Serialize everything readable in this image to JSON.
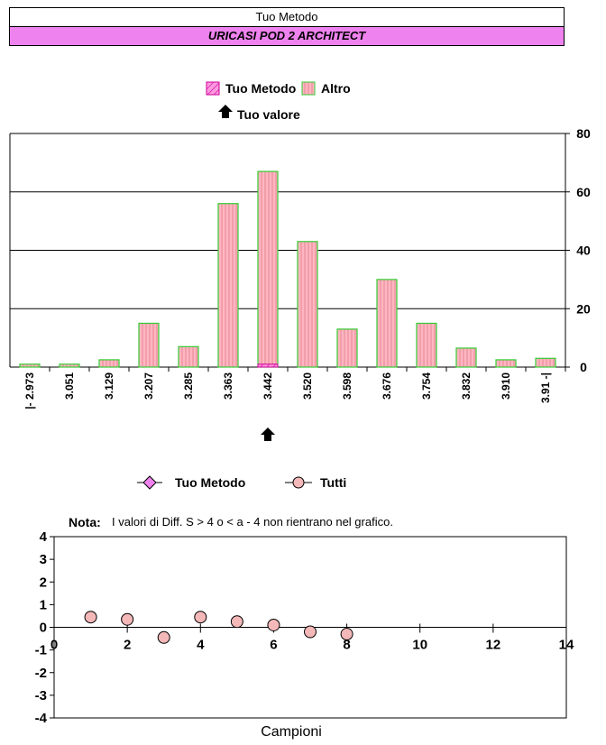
{
  "header": {
    "title": "Tuo Metodo",
    "subtitle": "URICASI POD 2  ARCHITECT"
  },
  "colors": {
    "header_bg": "#ee82ee",
    "bar_fill": "#ffb6c1",
    "bar_stroke": "#33cc33",
    "method_fill": "#ff66cc",
    "point_fill": "#f4b8b8"
  },
  "chart_data": [
    {
      "type": "bar",
      "legend": [
        "Tuo Metodo",
        "Altro"
      ],
      "marker_label": "Tuo valore",
      "categories": [
        "|- 2.973",
        "3.051",
        "3.129",
        "3.207",
        "3.285",
        "3.363",
        "3.442",
        "3.520",
        "3.598",
        "3.676",
        "3.754",
        "3.832",
        "3.910",
        "3.91 -|"
      ],
      "series": [
        {
          "name": "Altro",
          "values": [
            1,
            1,
            2.5,
            15,
            7,
            56,
            67,
            43,
            13,
            30,
            15,
            6.5,
            2.5,
            3
          ]
        },
        {
          "name": "Tuo Metodo",
          "values": [
            0,
            0,
            0,
            0,
            0,
            0,
            1,
            0,
            0,
            0,
            0,
            0,
            0,
            0
          ]
        }
      ],
      "marker_category_index": 6,
      "ylim": [
        0,
        80
      ],
      "yticks": [
        0,
        20,
        40,
        60,
        80
      ],
      "y_axis_side": "right",
      "grid": true
    },
    {
      "type": "scatter",
      "legend": [
        "Tuo Metodo",
        "Tutti"
      ],
      "note_label": "Nota:",
      "note_text": "I valori di Diff. S > 4 o < a - 4 non rientrano nel grafico.",
      "xlabel": "Campioni",
      "series": [
        {
          "name": "Tutti",
          "x": [
            1,
            2,
            3,
            4,
            5,
            6,
            7,
            8
          ],
          "y": [
            0.45,
            0.35,
            -0.45,
            0.45,
            0.25,
            0.1,
            -0.2,
            -0.3
          ]
        }
      ],
      "xlim": [
        0,
        14
      ],
      "xticks": [
        0,
        2,
        4,
        6,
        8,
        10,
        12,
        14
      ],
      "ylim": [
        -4,
        4
      ],
      "yticks": [
        4,
        3,
        2,
        1,
        0,
        -1,
        -2,
        -3,
        -4
      ]
    }
  ]
}
